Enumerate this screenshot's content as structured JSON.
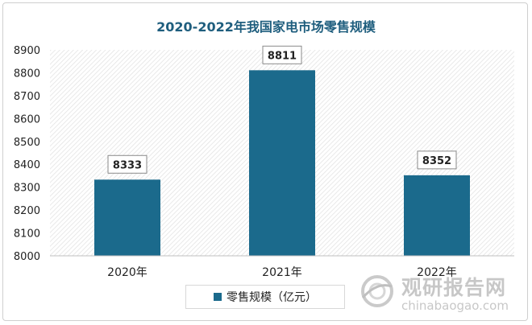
{
  "chart_data": {
    "type": "bar",
    "title": "2020-2022年我国家电市场零售规模",
    "categories": [
      "2020年",
      "2021年",
      "2022年"
    ],
    "series": [
      {
        "name": "零售规模（亿元）",
        "values": [
          8333,
          8811,
          8352
        ]
      }
    ],
    "ylim": [
      8000,
      8900
    ],
    "yticks": [
      8000,
      8100,
      8200,
      8300,
      8400,
      8500,
      8600,
      8700,
      8800,
      8900
    ],
    "xlabel": "",
    "ylabel": "",
    "grid": false,
    "legend_position": "bottom",
    "bar_color": "#1b6a8c",
    "title_color": "#1f5e7e"
  },
  "watermark": {
    "cn": "观研报告网",
    "en": "chinabaogao.com"
  }
}
